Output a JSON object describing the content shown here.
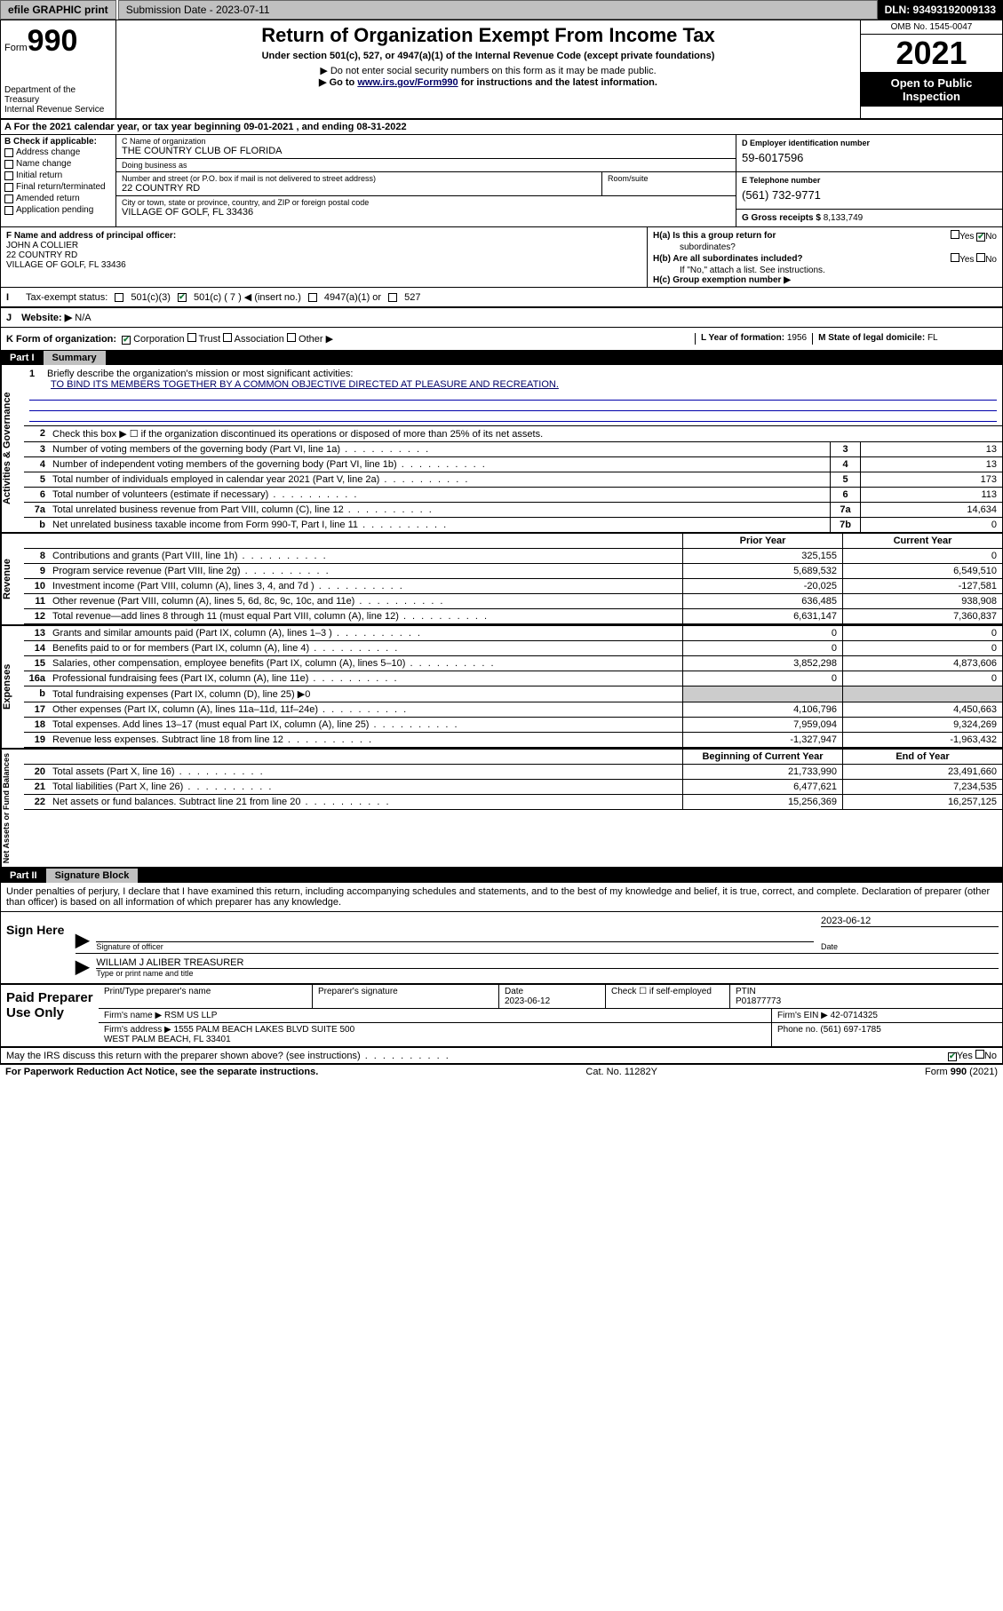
{
  "colors": {
    "black": "#000000",
    "white": "#ffffff",
    "grey_btn": "#c0c0c0",
    "link": "#003366",
    "check": "#117733",
    "shade": "#cccccc"
  },
  "topbar": {
    "efile": "efile GRAPHIC print",
    "sub_label": "Submission Date - 2023-07-11",
    "dln": "DLN: 93493192009133"
  },
  "header": {
    "form_word": "Form",
    "form_num": "990",
    "title": "Return of Organization Exempt From Income Tax",
    "subtitle": "Under section 501(c), 527, or 4947(a)(1) of the Internal Revenue Code (except private foundations)",
    "note1": "▶ Do not enter social security numbers on this form as it may be made public.",
    "note2_pre": "▶ Go to ",
    "note2_link": "www.irs.gov/Form990",
    "note2_post": " for instructions and the latest information.",
    "dept": "Department of the Treasury",
    "irs": "Internal Revenue Service",
    "omb": "OMB No. 1545-0047",
    "year": "2021",
    "open": "Open to Public Inspection"
  },
  "rowA": "A For the 2021 calendar year, or tax year beginning 09-01-2021  , and ending 08-31-2022",
  "b": {
    "title": "B Check if applicable:",
    "items": [
      "Address change",
      "Name change",
      "Initial return",
      "Final return/terminated",
      "Amended return",
      "Application pending"
    ]
  },
  "c": {
    "name_label": "C Name of organization",
    "name": "THE COUNTRY CLUB OF FLORIDA",
    "dba_label": "Doing business as",
    "dba": "",
    "street_label": "Number and street (or P.O. box if mail is not delivered to street address)",
    "room_label": "Room/suite",
    "street": "22 COUNTRY RD",
    "city_label": "City or town, state or province, country, and ZIP or foreign postal code",
    "city": "VILLAGE OF GOLF, FL  33436"
  },
  "d": {
    "label": "D Employer identification number",
    "val": "59-6017596"
  },
  "e": {
    "label": "E Telephone number",
    "val": "(561) 732-9771"
  },
  "g": {
    "label": "G Gross receipts $",
    "val": "8,133,749"
  },
  "f": {
    "label": "F  Name and address of principal officer:",
    "name": "JOHN A COLLIER",
    "addr1": "22 COUNTRY RD",
    "addr2": "VILLAGE OF GOLF, FL  33436"
  },
  "h": {
    "a1": "H(a)  Is this a group return for",
    "a2": "subordinates?",
    "b1": "H(b)  Are all subordinates included?",
    "note": "If \"No,\" attach a list. See instructions.",
    "c": "H(c)  Group exemption number ▶",
    "yes": "Yes",
    "no": "No"
  },
  "i": {
    "label": "Tax-exempt status:",
    "o1": "501(c)(3)",
    "o2": "501(c) ( 7 ) ◀ (insert no.)",
    "o3": "4947(a)(1) or",
    "o4": "527"
  },
  "j": {
    "label": "Website: ▶",
    "val": "N/A"
  },
  "k": {
    "label": "K Form of organization:",
    "opts": [
      "Corporation",
      "Trust",
      "Association",
      "Other ▶"
    ]
  },
  "l": {
    "label": "L Year of formation:",
    "val": "1956"
  },
  "m": {
    "label": "M State of legal domicile:",
    "val": "FL"
  },
  "part1": {
    "name": "Part I",
    "title": "Summary",
    "q1": "Briefly describe the organization's mission or most significant activities:",
    "mission": "TO BIND ITS MEMBERS TOGETHER BY A COMMON OBJECTIVE DIRECTED AT PLEASURE AND RECREATION.",
    "q2": "Check this box ▶ ☐  if the organization discontinued its operations or disposed of more than 25% of its net assets.",
    "gov_label": "Activities & Governance",
    "rev_label": "Revenue",
    "exp_label": "Expenses",
    "net_label": "Net Assets or Fund Balances",
    "rows_single": [
      {
        "n": "3",
        "t": "Number of voting members of the governing body (Part VI, line 1a)",
        "box": "3",
        "v": "13"
      },
      {
        "n": "4",
        "t": "Number of independent voting members of the governing body (Part VI, line 1b)",
        "box": "4",
        "v": "13"
      },
      {
        "n": "5",
        "t": "Total number of individuals employed in calendar year 2021 (Part V, line 2a)",
        "box": "5",
        "v": "173"
      },
      {
        "n": "6",
        "t": "Total number of volunteers (estimate if necessary)",
        "box": "6",
        "v": "113"
      },
      {
        "n": "7a",
        "t": "Total unrelated business revenue from Part VIII, column (C), line 12",
        "box": "7a",
        "v": "14,634"
      },
      {
        "n": "b",
        "t": "Net unrelated business taxable income from Form 990-T, Part I, line 11",
        "box": "7b",
        "v": "0"
      }
    ],
    "col_hdr_prior": "Prior Year",
    "col_hdr_curr": "Current Year",
    "rows_rev": [
      {
        "n": "8",
        "t": "Contributions and grants (Part VIII, line 1h)",
        "p": "325,155",
        "c": "0"
      },
      {
        "n": "9",
        "t": "Program service revenue (Part VIII, line 2g)",
        "p": "5,689,532",
        "c": "6,549,510"
      },
      {
        "n": "10",
        "t": "Investment income (Part VIII, column (A), lines 3, 4, and 7d )",
        "p": "-20,025",
        "c": "-127,581"
      },
      {
        "n": "11",
        "t": "Other revenue (Part VIII, column (A), lines 5, 6d, 8c, 9c, 10c, and 11e)",
        "p": "636,485",
        "c": "938,908"
      },
      {
        "n": "12",
        "t": "Total revenue—add lines 8 through 11 (must equal Part VIII, column (A), line 12)",
        "p": "6,631,147",
        "c": "7,360,837"
      }
    ],
    "rows_exp": [
      {
        "n": "13",
        "t": "Grants and similar amounts paid (Part IX, column (A), lines 1–3 )",
        "p": "0",
        "c": "0"
      },
      {
        "n": "14",
        "t": "Benefits paid to or for members (Part IX, column (A), line 4)",
        "p": "0",
        "c": "0"
      },
      {
        "n": "15",
        "t": "Salaries, other compensation, employee benefits (Part IX, column (A), lines 5–10)",
        "p": "3,852,298",
        "c": "4,873,606"
      },
      {
        "n": "16a",
        "t": "Professional fundraising fees (Part IX, column (A), line 11e)",
        "p": "0",
        "c": "0"
      },
      {
        "n": "b",
        "t": "Total fundraising expenses (Part IX, column (D), line 25) ▶0",
        "p": "",
        "c": "",
        "shade": true
      },
      {
        "n": "17",
        "t": "Other expenses (Part IX, column (A), lines 11a–11d, 11f–24e)",
        "p": "4,106,796",
        "c": "4,450,663"
      },
      {
        "n": "18",
        "t": "Total expenses. Add lines 13–17 (must equal Part IX, column (A), line 25)",
        "p": "7,959,094",
        "c": "9,324,269"
      },
      {
        "n": "19",
        "t": "Revenue less expenses. Subtract line 18 from line 12",
        "p": "-1,327,947",
        "c": "-1,963,432"
      }
    ],
    "col_hdr_beg": "Beginning of Current Year",
    "col_hdr_end": "End of Year",
    "rows_net": [
      {
        "n": "20",
        "t": "Total assets (Part X, line 16)",
        "p": "21,733,990",
        "c": "23,491,660"
      },
      {
        "n": "21",
        "t": "Total liabilities (Part X, line 26)",
        "p": "6,477,621",
        "c": "7,234,535"
      },
      {
        "n": "22",
        "t": "Net assets or fund balances. Subtract line 21 from line 20",
        "p": "15,256,369",
        "c": "16,257,125"
      }
    ]
  },
  "part2": {
    "name": "Part II",
    "title": "Signature Block"
  },
  "sig": {
    "intro": "Under penalties of perjury, I declare that I have examined this return, including accompanying schedules and statements, and to the best of my knowledge and belief, it is true, correct, and complete. Declaration of preparer (other than officer) is based on all information of which preparer has any knowledge.",
    "here": "Sign Here",
    "officer_sig": "Signature of officer",
    "date_label": "Date",
    "date": "2023-06-12",
    "officer_name": "WILLIAM J ALIBER  TREASURER",
    "name_label": "Type or print name and title"
  },
  "paid": {
    "title": "Paid Preparer Use Only",
    "h_name": "Print/Type preparer's name",
    "h_sig": "Preparer's signature",
    "h_date": "Date",
    "date": "2023-06-12",
    "h_check": "Check ☐ if self-employed",
    "h_ptin": "PTIN",
    "ptin": "P01877773",
    "firm_label": "Firm's name   ▶",
    "firm": "RSM US LLP",
    "ein_label": "Firm's EIN ▶",
    "ein": "42-0714325",
    "addr_label": "Firm's address ▶",
    "addr": "1555 PALM BEACH LAKES BLVD SUITE 500\nWEST PALM BEACH, FL  33401",
    "phone_label": "Phone no.",
    "phone": "(561) 697-1785"
  },
  "footer": {
    "q": "May the IRS discuss this return with the preparer shown above? (see instructions)",
    "yes": "Yes",
    "no": "No",
    "pra": "For Paperwork Reduction Act Notice, see the separate instructions.",
    "cat": "Cat. No. 11282Y",
    "form": "Form 990 (2021)"
  }
}
